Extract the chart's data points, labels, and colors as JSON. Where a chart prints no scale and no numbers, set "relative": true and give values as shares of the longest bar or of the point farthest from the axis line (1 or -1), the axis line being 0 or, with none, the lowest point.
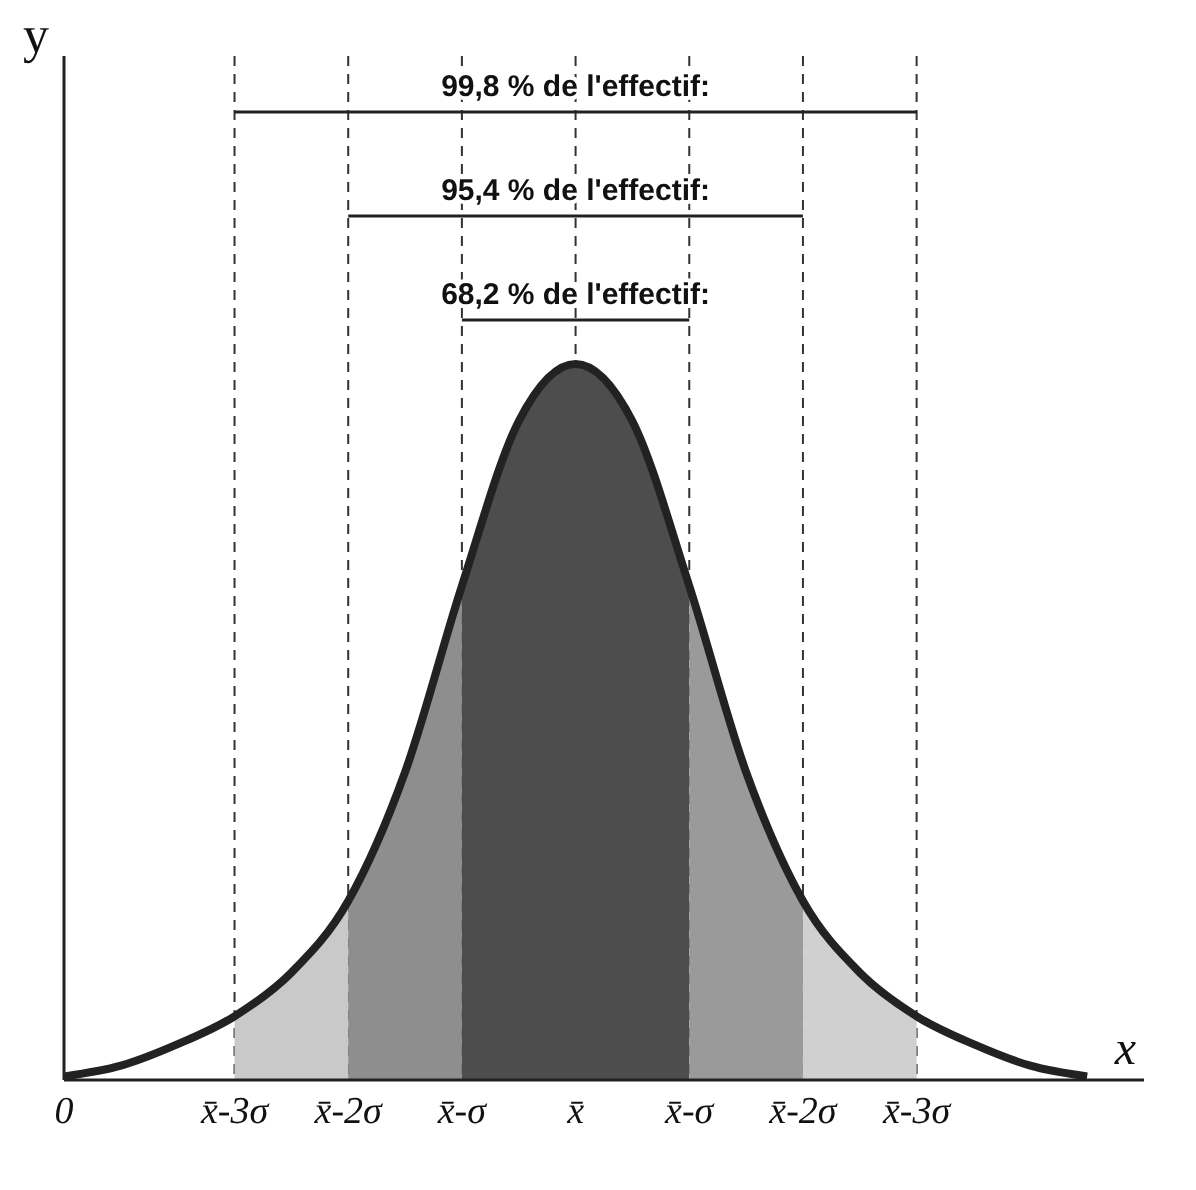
{
  "chart_data": {
    "type": "area",
    "relative": true,
    "xlabel": "x",
    "categories": [
      "0",
      null,
      null,
      "x̄-3σ",
      null,
      "x̄-2σ",
      null,
      "x̄-σ",
      null,
      "x̄",
      null,
      "x̄-σ",
      null,
      "x̄-2σ",
      null,
      "x̄-3σ",
      null,
      null,
      null,
      null
    ],
    "series": [
      {
        "color": "#c9c9c9",
        "values": [
          null,
          null,
          null,
          0.089,
          0.15,
          0.25,
          null,
          null,
          null,
          null,
          null,
          null,
          null,
          null,
          null,
          null,
          null,
          null,
          null,
          null
        ]
      },
      {
        "color": "#8e8e8e",
        "values": [
          null,
          null,
          null,
          null,
          null,
          0.25,
          0.43,
          0.69,
          null,
          null,
          null,
          null,
          null,
          null,
          null,
          null,
          null,
          null,
          null,
          null
        ]
      },
      {
        "color": "#4d4d4d",
        "values": [
          null,
          null,
          null,
          null,
          null,
          null,
          null,
          0.69,
          0.92,
          1,
          0.92,
          0.69,
          null,
          null,
          null,
          null,
          null,
          null,
          null,
          null
        ]
      },
      {
        "color": "#9a9a9a",
        "values": [
          null,
          null,
          null,
          null,
          null,
          null,
          null,
          null,
          null,
          null,
          null,
          0.69,
          0.43,
          0.25,
          null,
          null,
          null,
          null,
          null,
          null
        ]
      },
      {
        "color": "#d0d0d0",
        "values": [
          null,
          null,
          null,
          null,
          null,
          null,
          null,
          null,
          null,
          null,
          null,
          null,
          null,
          0.25,
          0.15,
          0.089,
          null,
          null,
          null,
          null
        ]
      },
      {
        "type": "line",
        "color": "#222222",
        "values": [
          0.005,
          0.02,
          0.05,
          0.089,
          0.15,
          0.25,
          0.43,
          0.69,
          0.92,
          1,
          0.92,
          0.69,
          0.43,
          0.25,
          0.15,
          0.089,
          0.05,
          0.02,
          0.005,
          null
        ]
      }
    ],
    "annotations": [
      "99,8 % de l'effectif:",
      "95,4 % de l'effectif:",
      "68,2 % de l'effectif:",
      "y"
    ],
    "grid": "x",
    "legend": false,
    "marker": "none"
  }
}
